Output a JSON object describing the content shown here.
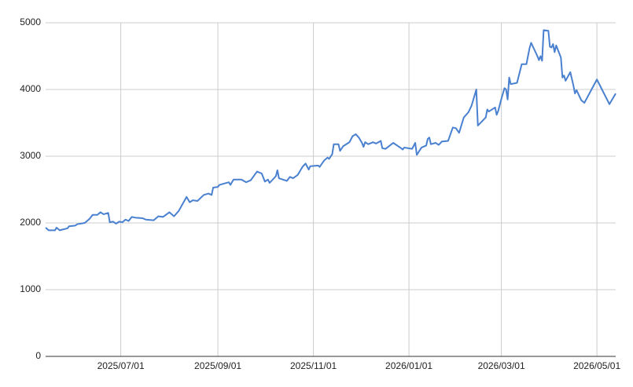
{
  "chart_data": {
    "type": "line",
    "x": [
      "2025/05/14",
      "2025/05/16",
      "2025/05/20",
      "2025/05/21",
      "2025/05/23",
      "2025/05/28",
      "2025/05/29",
      "2025/06/02",
      "2025/06/03",
      "2025/06/08",
      "2025/06/11",
      "2025/06/13",
      "2025/06/16",
      "2025/06/18",
      "2025/06/20",
      "2025/06/23",
      "2025/06/24",
      "2025/06/26",
      "2025/06/28",
      "2025/06/30",
      "2025/07/02",
      "2025/07/04",
      "2025/07/06",
      "2025/07/08",
      "2025/07/10",
      "2025/07/15",
      "2025/07/17",
      "2025/07/22",
      "2025/07/25",
      "2025/07/28",
      "2025/08/01",
      "2025/08/04",
      "2025/08/07",
      "2025/08/12",
      "2025/08/14",
      "2025/08/16",
      "2025/08/19",
      "2025/08/23",
      "2025/08/26",
      "2025/08/28",
      "2025/08/29",
      "2025/09/01",
      "2025/09/02",
      "2025/09/05",
      "2025/09/08",
      "2025/09/09",
      "2025/09/11",
      "2025/09/16",
      "2025/09/19",
      "2025/09/22",
      "2025/09/26",
      "2025/09/29",
      "2025/10/01",
      "2025/10/03",
      "2025/10/04",
      "2025/10/08",
      "2025/10/09",
      "2025/10/10",
      "2025/10/15",
      "2025/10/17",
      "2025/10/19",
      "2025/10/22",
      "2025/10/25",
      "2025/10/27",
      "2025/10/29",
      "2025/10/30",
      "2025/11/04",
      "2025/11/05",
      "2025/11/08",
      "2025/11/10",
      "2025/11/11",
      "2025/11/13",
      "2025/11/14",
      "2025/11/17",
      "2025/11/18",
      "2025/11/20",
      "2025/11/24",
      "2025/11/26",
      "2025/11/28",
      "2025/11/30",
      "2025/12/02",
      "2025/12/03",
      "2025/12/04",
      "2025/12/06",
      "2025/12/09",
      "2025/12/11",
      "2025/12/14",
      "2025/12/15",
      "2025/12/17",
      "2025/12/22",
      "2025/12/27",
      "2025/12/28",
      "2025/12/29",
      "2026/01/03",
      "2026/01/05",
      "2026/01/06",
      "2026/01/09",
      "2026/01/12",
      "2026/01/13",
      "2026/01/14",
      "2026/01/15",
      "2026/01/18",
      "2026/01/20",
      "2026/01/22",
      "2026/01/26",
      "2026/01/29",
      "2026/01/31",
      "2026/02/02",
      "2026/02/05",
      "2026/02/08",
      "2026/02/10",
      "2026/02/13",
      "2026/02/14",
      "2026/02/19",
      "2026/02/20",
      "2026/02/21",
      "2026/02/25",
      "2026/02/26",
      "2026/02/27",
      "2026/03/01",
      "2026/03/03",
      "2026/03/04",
      "2026/03/05",
      "2026/03/06",
      "2026/03/07",
      "2026/03/11",
      "2026/03/14",
      "2026/03/17",
      "2026/03/19",
      "2026/03/20",
      "2026/03/24",
      "2026/03/25",
      "2026/03/26",
      "2026/03/27",
      "2026/03/28",
      "2026/03/31",
      "2026/04/01",
      "2026/04/02",
      "2026/04/03",
      "2026/04/04",
      "2026/04/05",
      "2026/04/08",
      "2026/04/09",
      "2026/04/10",
      "2026/04/11",
      "2026/04/14",
      "2026/04/16",
      "2026/04/17",
      "2026/04/18",
      "2026/04/21",
      "2026/04/23",
      "2026/05/01",
      "2026/05/09",
      "2026/05/13"
    ],
    "series": [
      {
        "color": "#4a80d0",
        "values": [
          1930,
          1890,
          1890,
          1930,
          1890,
          1920,
          1950,
          1960,
          1980,
          2000,
          2060,
          2120,
          2120,
          2160,
          2130,
          2150,
          2010,
          2020,
          1990,
          2020,
          2010,
          2050,
          2030,
          2090,
          2080,
          2070,
          2050,
          2040,
          2100,
          2090,
          2160,
          2100,
          2180,
          2390,
          2310,
          2340,
          2330,
          2420,
          2440,
          2420,
          2530,
          2540,
          2570,
          2590,
          2610,
          2570,
          2650,
          2650,
          2610,
          2640,
          2770,
          2740,
          2620,
          2650,
          2600,
          2700,
          2790,
          2670,
          2630,
          2690,
          2670,
          2720,
          2840,
          2890,
          2800,
          2850,
          2860,
          2840,
          2940,
          2980,
          2960,
          3030,
          3180,
          3180,
          3080,
          3150,
          3210,
          3300,
          3330,
          3280,
          3200,
          3140,
          3210,
          3180,
          3210,
          3190,
          3230,
          3120,
          3110,
          3200,
          3120,
          3100,
          3130,
          3110,
          3200,
          3020,
          3130,
          3160,
          3260,
          3280,
          3180,
          3200,
          3170,
          3220,
          3230,
          3430,
          3420,
          3350,
          3580,
          3660,
          3760,
          4000,
          3460,
          3580,
          3700,
          3670,
          3730,
          3620,
          3680,
          3860,
          4020,
          4000,
          3850,
          4180,
          4080,
          4100,
          4380,
          4380,
          4620,
          4700,
          4500,
          4440,
          4500,
          4430,
          4890,
          4880,
          4640,
          4630,
          4680,
          4560,
          4660,
          4480,
          4180,
          4210,
          4130,
          4260,
          4060,
          3940,
          3990,
          3840,
          3800,
          4150,
          3780,
          3940
        ]
      }
    ],
    "xlim": [
      "2025/05/14",
      "2026/05/13"
    ],
    "xticks": [
      "2025/07/01",
      "2025/09/01",
      "2025/11/01",
      "2026/01/01",
      "2026/03/01",
      "2026/05/01"
    ],
    "ylim": [
      0,
      5000
    ],
    "yticks": [
      0,
      1000,
      2000,
      3000,
      4000,
      5000
    ],
    "grid": true
  }
}
